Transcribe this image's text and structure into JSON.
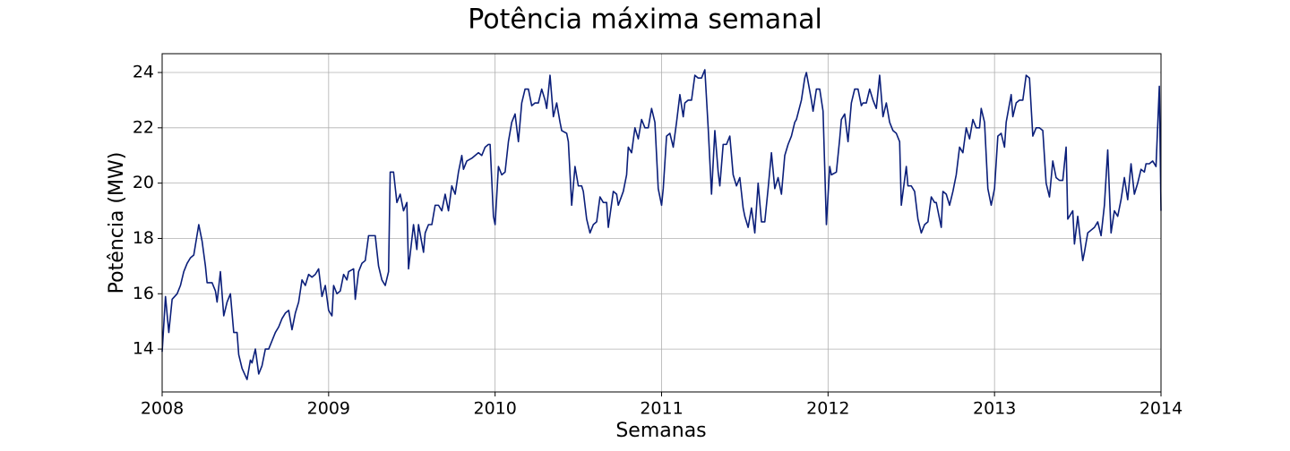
{
  "chart_data": {
    "type": "line",
    "title": "Potência máxima semanal",
    "x_label": "Semanas",
    "y_label": "Potência (MW)",
    "color": "#0b1f7a",
    "grid": true,
    "xlim": [
      2008,
      2014
    ],
    "xticks": [
      2008,
      2009,
      2010,
      2011,
      2012,
      2013,
      2014
    ],
    "ylim": [
      12.45,
      24.68
    ],
    "yticks": [
      14,
      16,
      18,
      20,
      22,
      24
    ],
    "x": [
      2008.0,
      2008.02,
      2008.04,
      2008.06,
      2008.09,
      2008.11,
      2008.13,
      2008.15,
      2008.17,
      2008.19,
      2008.22,
      2008.24,
      2008.26,
      2008.27,
      2008.3,
      2008.32,
      2008.33,
      2008.35,
      2008.37,
      2008.39,
      2008.41,
      2008.43,
      2008.45,
      2008.46,
      2008.48,
      2008.51,
      2008.53,
      2008.54,
      2008.56,
      2008.58,
      2008.6,
      2008.62,
      2008.64,
      2008.66,
      2008.68,
      2008.7,
      2008.72,
      2008.74,
      2008.76,
      2008.78,
      2008.8,
      2008.82,
      2008.84,
      2008.86,
      2008.88,
      2008.9,
      2008.92,
      2008.94,
      2008.96,
      2008.98,
      2009.0,
      2009.02,
      2009.03,
      2009.05,
      2009.07,
      2009.09,
      2009.11,
      2009.12,
      2009.15,
      2009.16,
      2009.18,
      2009.2,
      2009.22,
      2009.24,
      2009.26,
      2009.28,
      2009.3,
      2009.32,
      2009.34,
      2009.36,
      2009.37,
      2009.39,
      2009.41,
      2009.43,
      2009.45,
      2009.47,
      2009.48,
      2009.51,
      2009.53,
      2009.54,
      2009.57,
      2009.58,
      2009.6,
      2009.62,
      2009.64,
      2009.66,
      2009.68,
      2009.7,
      2009.72,
      2009.74,
      2009.76,
      2009.78,
      2009.8,
      2009.81,
      2009.83,
      2009.86,
      2009.88,
      2009.9,
      2009.92,
      2009.94,
      2009.96,
      2009.97,
      2009.99,
      2010.0,
      2010.02,
      2010.04,
      2010.06,
      2010.08,
      2010.1,
      2010.12,
      2010.14,
      2010.16,
      2010.18,
      2010.2,
      2010.22,
      2010.24,
      2010.26,
      2010.28,
      2010.3,
      2010.31,
      2010.33,
      2010.35,
      2010.37,
      2010.39,
      2010.4,
      2010.43,
      2010.44,
      2010.46,
      2010.48,
      2010.5,
      2010.52,
      2010.53,
      2010.55,
      2010.57,
      2010.59,
      2010.61,
      2010.63,
      2010.65,
      2010.67,
      2010.68,
      2010.71,
      2010.73,
      2010.74,
      2010.77,
      2010.79,
      2010.8,
      2010.82,
      2010.84,
      2010.86,
      2010.88,
      2010.9,
      2010.92,
      2010.94,
      2010.96,
      2010.98,
      2011.0,
      2011.01,
      2011.03,
      2011.05,
      2011.07,
      2011.09,
      2011.11,
      2011.13,
      2011.14,
      2011.16,
      2011.18,
      2011.2,
      2011.22,
      2011.24,
      2011.26,
      2011.28,
      2011.3,
      2011.32,
      2011.34,
      2011.35,
      2011.37,
      2011.39,
      2011.41,
      2011.43,
      2011.45,
      2011.47,
      2011.49,
      2011.5,
      2011.52,
      2011.54,
      2011.56,
      2011.58,
      2011.6,
      2011.62,
      2011.64,
      2011.66,
      2011.68,
      2011.7,
      2011.72,
      2011.74,
      2011.76,
      2011.78,
      2011.8,
      2011.81,
      2011.84,
      2011.86,
      2011.87,
      2011.9,
      2011.91,
      2011.93,
      2011.95,
      2011.97,
      2011.99,
      2012.01,
      2012.02,
      2012.05,
      2012.07,
      2012.08,
      2012.1,
      2012.12,
      2012.14,
      2012.16,
      2012.18,
      2012.2,
      2012.21,
      2012.23,
      2012.25,
      2012.27,
      2012.29,
      2012.31,
      2012.33,
      2012.35,
      2012.37,
      2012.39,
      2012.41,
      2012.43,
      2012.44,
      2012.47,
      2012.48,
      2012.5,
      2012.52,
      2012.54,
      2012.56,
      2012.58,
      2012.6,
      2012.62,
      2012.64,
      2012.65,
      2012.68,
      2012.69,
      2012.71,
      2012.73,
      2012.75,
      2012.77,
      2012.79,
      2012.81,
      2012.83,
      2012.85,
      2012.87,
      2012.89,
      2012.91,
      2012.92,
      2012.94,
      2012.96,
      2012.98,
      2013.0,
      2013.02,
      2013.04,
      2013.06,
      2013.07,
      2013.1,
      2013.11,
      2013.13,
      2013.15,
      2013.17,
      2013.19,
      2013.21,
      2013.23,
      2013.25,
      2013.27,
      2013.29,
      2013.31,
      2013.33,
      2013.35,
      2013.37,
      2013.39,
      2013.41,
      2013.43,
      2013.44,
      2013.47,
      2013.48,
      2013.5,
      2013.53,
      2013.54,
      2013.56,
      2013.58,
      2013.6,
      2013.62,
      2013.64,
      2013.66,
      2013.68,
      2013.7,
      2013.72,
      2013.74,
      2013.76,
      2013.78,
      2013.8,
      2013.82,
      2013.84,
      2013.86,
      2013.88,
      2013.9,
      2013.91,
      2013.93,
      2013.95,
      2013.97,
      2013.99,
      2014.0
    ],
    "values": [
      13.9,
      15.9,
      14.6,
      15.8,
      16.0,
      16.3,
      16.8,
      17.1,
      17.3,
      17.4,
      18.5,
      17.9,
      17.0,
      16.4,
      16.4,
      16.1,
      15.7,
      16.8,
      15.2,
      15.7,
      16.0,
      14.6,
      14.6,
      13.8,
      13.3,
      12.9,
      13.6,
      13.5,
      14.0,
      13.1,
      13.4,
      14.0,
      14.0,
      14.3,
      14.6,
      14.8,
      15.1,
      15.3,
      15.4,
      14.7,
      15.3,
      15.7,
      16.5,
      16.3,
      16.7,
      16.6,
      16.7,
      16.9,
      15.9,
      16.3,
      15.4,
      15.2,
      16.3,
      16.0,
      16.1,
      16.7,
      16.5,
      16.8,
      16.9,
      15.8,
      16.8,
      17.1,
      17.2,
      18.1,
      18.1,
      18.1,
      17.0,
      16.5,
      16.3,
      16.8,
      20.4,
      20.4,
      19.3,
      19.6,
      19.0,
      19.3,
      16.9,
      18.5,
      17.6,
      18.5,
      17.5,
      18.2,
      18.5,
      18.5,
      19.2,
      19.2,
      19.0,
      19.6,
      19.0,
      19.9,
      19.6,
      20.4,
      21.0,
      20.5,
      20.8,
      20.9,
      21.0,
      21.1,
      21.0,
      21.3,
      21.4,
      21.4,
      18.8,
      18.5,
      20.6,
      20.3,
      20.4,
      21.5,
      22.2,
      22.5,
      21.5,
      22.9,
      23.4,
      23.4,
      22.8,
      22.9,
      22.9,
      23.4,
      23.0,
      22.7,
      23.9,
      22.4,
      22.9,
      22.2,
      21.9,
      21.8,
      21.5,
      19.2,
      20.6,
      19.9,
      19.9,
      19.7,
      18.7,
      18.2,
      18.5,
      18.6,
      19.5,
      19.3,
      19.3,
      18.4,
      19.7,
      19.6,
      19.2,
      19.7,
      20.3,
      21.3,
      21.1,
      22.0,
      21.6,
      22.3,
      22.0,
      22.0,
      22.7,
      22.2,
      19.8,
      19.2,
      19.8,
      21.7,
      21.8,
      21.3,
      22.2,
      23.2,
      22.4,
      22.9,
      23.0,
      23.0,
      23.9,
      23.8,
      23.8,
      24.1,
      22.0,
      19.6,
      21.9,
      20.4,
      19.9,
      21.4,
      21.4,
      21.7,
      20.3,
      19.9,
      20.2,
      19.1,
      18.8,
      18.4,
      19.1,
      18.2,
      20.0,
      18.6,
      18.6,
      19.8,
      21.1,
      19.8,
      20.2,
      19.6,
      21.0,
      21.4,
      21.7,
      22.2,
      22.3,
      23.0,
      23.8,
      24.0,
      23.0,
      22.6,
      23.4,
      23.4,
      22.6,
      18.5,
      20.6,
      20.3,
      20.4,
      21.6,
      22.3,
      22.5,
      21.5,
      22.9,
      23.4,
      23.4,
      22.8,
      22.9,
      22.9,
      23.4,
      23.0,
      22.7,
      23.9,
      22.4,
      22.9,
      22.2,
      21.9,
      21.8,
      21.5,
      19.2,
      20.6,
      19.9,
      19.9,
      19.7,
      18.7,
      18.2,
      18.5,
      18.6,
      19.5,
      19.3,
      19.3,
      18.4,
      19.7,
      19.6,
      19.2,
      19.7,
      20.3,
      21.3,
      21.1,
      22.0,
      21.6,
      22.3,
      22.0,
      22.0,
      22.7,
      22.2,
      19.8,
      19.2,
      19.8,
      21.7,
      21.8,
      21.3,
      22.2,
      23.2,
      22.4,
      22.9,
      23.0,
      23.0,
      23.9,
      23.8,
      21.7,
      22.0,
      22.0,
      21.9,
      20.0,
      19.5,
      20.8,
      20.2,
      20.1,
      20.1,
      21.3,
      18.7,
      19.0,
      17.8,
      18.8,
      17.2,
      17.5,
      18.2,
      18.3,
      18.4,
      18.6,
      18.1,
      19.2,
      21.2,
      18.2,
      19.0,
      18.8,
      19.4,
      20.2,
      19.4,
      20.7,
      19.6,
      20.0,
      20.5,
      20.4,
      20.7,
      20.7,
      20.8,
      20.6,
      23.5,
      19.0
    ]
  }
}
